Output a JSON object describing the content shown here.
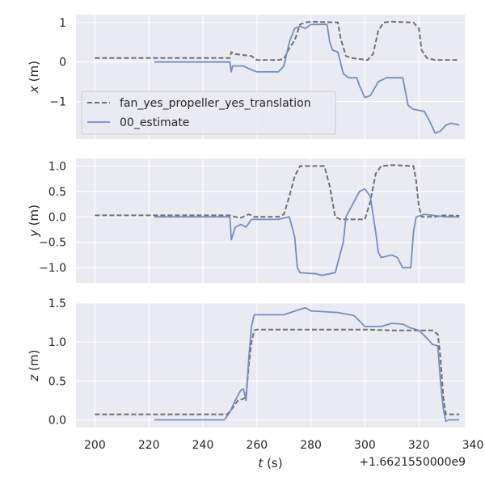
{
  "chart_data": {
    "type": "line",
    "grid": true,
    "legend": {
      "placement": "lower-left of top panel",
      "entries": [
        "fan_yes_propeller_yes_translation",
        "00_estimate"
      ]
    },
    "xlabel": "t (s)",
    "x_offset_label": "+1.6621550000e9",
    "xlim": [
      193,
      337
    ],
    "xticks": [
      "200",
      "220",
      "240",
      "260",
      "280",
      "300",
      "320",
      "340"
    ],
    "colors": {
      "reference": "#707070",
      "estimate": "#6f8fc6",
      "panel_bg": "#eaeaf2",
      "grid": "#ffffff"
    },
    "panels": [
      {
        "ylabel": "x (m)",
        "ylim": [
          -1.95,
          1.2
        ],
        "yticks": [
          "1",
          "0",
          "−1"
        ],
        "series": [
          {
            "name": "fan_yes_propeller_yes_translation",
            "style": "dashed",
            "points": [
              [
                200,
                0.1
              ],
              [
                250,
                0.1
              ],
              [
                250.5,
                0.25
              ],
              [
                252,
                0.2
              ],
              [
                258,
                0.15
              ],
              [
                260,
                0.05
              ],
              [
                268,
                0.05
              ],
              [
                270,
                0.08
              ],
              [
                272,
                0.35
              ],
              [
                274,
                0.55
              ],
              [
                276,
                0.95
              ],
              [
                278,
                1.0
              ],
              [
                280,
                1.02
              ],
              [
                290,
                1.0
              ],
              [
                291,
                0.6
              ],
              [
                293,
                0.15
              ],
              [
                295,
                0.1
              ],
              [
                301,
                0.05
              ],
              [
                303,
                0.2
              ],
              [
                305,
                0.8
              ],
              [
                307,
                1.0
              ],
              [
                310,
                1.02
              ],
              [
                318,
                1.0
              ],
              [
                320,
                0.85
              ],
              [
                321,
                0.3
              ],
              [
                323,
                0.1
              ],
              [
                326,
                0.05
              ],
              [
                335,
                0.05
              ]
            ]
          },
          {
            "name": "00_estimate",
            "style": "solid",
            "points": [
              [
                222,
                0.0
              ],
              [
                250,
                0.0
              ],
              [
                250.5,
                -0.25
              ],
              [
                251,
                -0.1
              ],
              [
                255,
                -0.1
              ],
              [
                258,
                -0.2
              ],
              [
                260,
                -0.25
              ],
              [
                268,
                -0.25
              ],
              [
                270,
                -0.1
              ],
              [
                272,
                0.5
              ],
              [
                274,
                0.85
              ],
              [
                276,
                0.9
              ],
              [
                278,
                0.85
              ],
              [
                280,
                0.95
              ],
              [
                286,
                0.95
              ],
              [
                287,
                0.5
              ],
              [
                288,
                0.3
              ],
              [
                290,
                0.25
              ],
              [
                292,
                -0.3
              ],
              [
                294,
                -0.4
              ],
              [
                297,
                -0.4
              ],
              [
                298,
                -0.6
              ],
              [
                300,
                -0.9
              ],
              [
                302,
                -0.85
              ],
              [
                305,
                -0.5
              ],
              [
                308,
                -0.4
              ],
              [
                314,
                -0.4
              ],
              [
                316,
                -1.1
              ],
              [
                318,
                -1.2
              ],
              [
                322,
                -1.25
              ],
              [
                324,
                -1.5
              ],
              [
                326,
                -1.8
              ],
              [
                328,
                -1.75
              ],
              [
                330,
                -1.6
              ],
              [
                332,
                -1.55
              ],
              [
                335,
                -1.6
              ]
            ]
          }
        ]
      },
      {
        "ylabel": "y (m)",
        "ylim": [
          -1.3,
          1.15
        ],
        "yticks": [
          "1.0",
          "0.5",
          "0.0",
          "−0.5",
          "−1.0"
        ],
        "series": [
          {
            "name": "fan_yes_propeller_yes_translation",
            "style": "dashed",
            "points": [
              [
                200,
                0.03
              ],
              [
                250,
                0.03
              ],
              [
                252,
                0.0
              ],
              [
                254,
                -0.02
              ],
              [
                257,
                0.05
              ],
              [
                259,
                0.0
              ],
              [
                268,
                0.0
              ],
              [
                270,
                0.05
              ],
              [
                272,
                0.4
              ],
              [
                274,
                0.8
              ],
              [
                276,
                1.0
              ],
              [
                285,
                1.0
              ],
              [
                287,
                0.6
              ],
              [
                288,
                0.3
              ],
              [
                289,
                0.0
              ],
              [
                291,
                -0.05
              ],
              [
                300,
                -0.05
              ],
              [
                302,
                0.3
              ],
              [
                304,
                0.85
              ],
              [
                306,
                1.0
              ],
              [
                310,
                1.02
              ],
              [
                318,
                1.0
              ],
              [
                319,
                0.7
              ],
              [
                320,
                0.2
              ],
              [
                321,
                0.0
              ],
              [
                326,
                0.0
              ],
              [
                329,
                0.03
              ],
              [
                335,
                0.02
              ]
            ]
          },
          {
            "name": "00_estimate",
            "style": "solid",
            "points": [
              [
                222,
                0.0
              ],
              [
                250,
                0.0
              ],
              [
                250.5,
                -0.45
              ],
              [
                252,
                -0.2
              ],
              [
                254,
                -0.15
              ],
              [
                256,
                -0.2
              ],
              [
                258,
                -0.05
              ],
              [
                268,
                -0.05
              ],
              [
                272,
                0.0
              ],
              [
                274,
                -0.4
              ],
              [
                275,
                -1.0
              ],
              [
                276,
                -1.1
              ],
              [
                282,
                -1.12
              ],
              [
                284,
                -1.15
              ],
              [
                289,
                -1.1
              ],
              [
                292,
                -0.5
              ],
              [
                293,
                0.0
              ],
              [
                296,
                0.3
              ],
              [
                298,
                0.5
              ],
              [
                300,
                0.55
              ],
              [
                302,
                0.4
              ],
              [
                304,
                -0.3
              ],
              [
                305,
                -0.7
              ],
              [
                306,
                -0.8
              ],
              [
                310,
                -0.75
              ],
              [
                312,
                -0.8
              ],
              [
                314,
                -1.0
              ],
              [
                317,
                -1.0
              ],
              [
                318,
                -0.3
              ],
              [
                319,
                0.0
              ],
              [
                322,
                0.05
              ],
              [
                330,
                0.0
              ],
              [
                335,
                0.0
              ]
            ]
          }
        ]
      },
      {
        "ylabel": "z (m)",
        "ylim": [
          -0.1,
          1.5
        ],
        "yticks": [
          "1.5",
          "1.0",
          "0.5",
          "0.0"
        ],
        "series": [
          {
            "name": "fan_yes_propeller_yes_translation",
            "style": "dashed",
            "points": [
              [
                200,
                0.07
              ],
              [
                249,
                0.07
              ],
              [
                251,
                0.15
              ],
              [
                253,
                0.25
              ],
              [
                255,
                0.27
              ],
              [
                256,
                0.3
              ],
              [
                257,
                0.7
              ],
              [
                258,
                1.0
              ],
              [
                259,
                1.15
              ],
              [
                260,
                1.16
              ],
              [
                300,
                1.16
              ],
              [
                310,
                1.15
              ],
              [
                325,
                1.15
              ],
              [
                327,
                1.1
              ],
              [
                328,
                0.8
              ],
              [
                329,
                0.3
              ],
              [
                330,
                0.07
              ],
              [
                335,
                0.07
              ]
            ]
          },
          {
            "name": "00_estimate",
            "style": "solid",
            "points": [
              [
                222,
                0.0
              ],
              [
                248,
                0.0
              ],
              [
                250,
                0.1
              ],
              [
                252,
                0.25
              ],
              [
                254,
                0.38
              ],
              [
                255,
                0.4
              ],
              [
                256,
                0.25
              ],
              [
                257,
                0.8
              ],
              [
                258,
                1.2
              ],
              [
                259,
                1.35
              ],
              [
                270,
                1.35
              ],
              [
                276,
                1.42
              ],
              [
                278,
                1.44
              ],
              [
                280,
                1.4
              ],
              [
                290,
                1.38
              ],
              [
                296,
                1.34
              ],
              [
                300,
                1.2
              ],
              [
                306,
                1.2
              ],
              [
                310,
                1.24
              ],
              [
                314,
                1.23
              ],
              [
                317,
                1.18
              ],
              [
                320,
                1.15
              ],
              [
                323,
                1.05
              ],
              [
                325,
                0.97
              ],
              [
                327,
                0.95
              ],
              [
                328,
                0.5
              ],
              [
                329,
                0.15
              ],
              [
                330,
                -0.02
              ],
              [
                331,
                0.0
              ],
              [
                335,
                0.0
              ]
            ]
          }
        ]
      }
    ]
  }
}
